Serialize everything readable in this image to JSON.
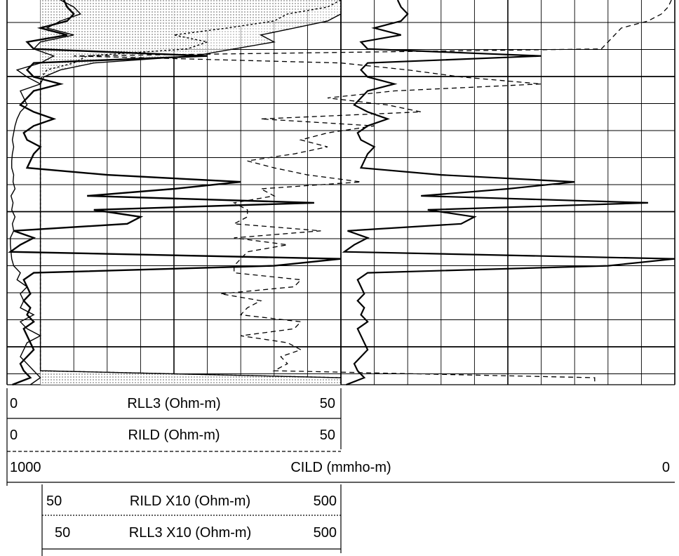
{
  "chart_data": {
    "type": "line",
    "title": "",
    "grid": true,
    "depth_samples": 56,
    "tracks": [
      {
        "name": "track-1",
        "scale": "linear",
        "range": [
          0,
          50
        ],
        "curves": [
          {
            "name": "RLL3",
            "label": "RLL3 (Ohm-m)",
            "unit": "Ohm-m",
            "left_value": "0",
            "right_value": "50",
            "style": "solid",
            "values": [
              8.5,
              9.0,
              10.0,
              9.0,
              5.0,
              9.0,
              3.0,
              4.0,
              30.0,
              4.0,
              3.0,
              4.0,
              8.0,
              4.0,
              3.0,
              2.0,
              4.0,
              7.0,
              4.0,
              2.5,
              3.0,
              5.0,
              4.0,
              3.5,
              3.0,
              15.0,
              35.0,
              25.0,
              12.0,
              46.0,
              13.0,
              20.0,
              18.0,
              1.0,
              4.0,
              2.0,
              0.5,
              50.0,
              40.0,
              4.0,
              2.5,
              3.0,
              3.5,
              2.5,
              3.5,
              3.0,
              4.0,
              2.5,
              3.0,
              3.5,
              4.0,
              3.0,
              2.0,
              2.5,
              3.5,
              0.8
            ]
          },
          {
            "name": "RILD",
            "label": "RILD (Ohm-m)",
            "unit": "Ohm-m",
            "left_value": "0",
            "right_value": "50",
            "style": "solid",
            "values": [
              8.0,
              10.0,
              11.0,
              8.0,
              6.0,
              10.0,
              5.0,
              4.0,
              7.0,
              5.0,
              1.5,
              3.0,
              5.0,
              2.0,
              2.5,
              3.0,
              2.0,
              1.5,
              1.2,
              1.0,
              0.8,
              1.0,
              0.8,
              0.7,
              0.7,
              1.0,
              0.9,
              1.2,
              0.6,
              0.9,
              0.7,
              1.2,
              0.8,
              1.0,
              0.5,
              0.5,
              0.6,
              0.7,
              1.0,
              2.0,
              1.5,
              3.0,
              2.0,
              2.5,
              2.0,
              4.0,
              2.0,
              3.0,
              5.0,
              3.0,
              2.5,
              2.0,
              3.0,
              4.0,
              5.0,
              3.5
            ]
          },
          {
            "name": "RILD X10",
            "label": "RILD X10 (Ohm-m)",
            "unit": "Ohm-m",
            "left_value": "50",
            "right_value": "500",
            "style": "dotted",
            "values": [
              500,
              480,
              420,
              400,
              330,
              250,
              300,
              270,
              120,
              100,
              60,
              52,
              50,
              50,
              50,
              50,
              50,
              50,
              50,
              50,
              50,
              50,
              50,
              50,
              50,
              50,
              50,
              50,
              50,
              50,
              50,
              50,
              50,
              50,
              50,
              50,
              50,
              50,
              50,
              50,
              50,
              50,
              50,
              50,
              50,
              50,
              50,
              50,
              50,
              50,
              50,
              50,
              50,
              50,
              500,
              500
            ]
          },
          {
            "name": "RLL3 X10",
            "label": "RLL3 X10 (Ohm-m)",
            "unit": "Ohm-m",
            "left_value": "50",
            "right_value": "500",
            "style": "solid",
            "values": [
              500,
              500,
              500,
              480,
              430,
              380,
              400,
              340,
              280,
              130,
              80,
              55,
              50,
              50,
              50,
              50,
              50,
              50,
              50,
              50,
              50,
              50,
              50,
              50,
              50,
              50,
              50,
              50,
              50,
              50,
              50,
              50,
              50,
              50,
              50,
              50,
              50,
              50,
              50,
              50,
              50,
              50,
              50,
              50,
              50,
              50,
              50,
              50,
              50,
              50,
              50,
              50,
              50,
              50,
              500,
              500
            ]
          }
        ]
      },
      {
        "name": "track-2",
        "scale": "linear",
        "range": [
          1000,
          0
        ],
        "curves": [
          {
            "name": "CILD",
            "label": "CILD (mmho-m)",
            "unit": "mmho-m",
            "left_value": "1000",
            "right_value": "0",
            "style": "dashed",
            "values": [
              5,
              10,
              20,
              40,
              80,
              90,
              100,
              110,
              900,
              500,
              400,
              320,
              200,
              420,
              520,
              430,
              380,
              620,
              450,
              520,
              560,
              520,
              570,
              640,
              600,
              550,
              470,
              620,
              600,
              660,
              640,
              640,
              660,
              530,
              660,
              580,
              640,
              650,
              660,
              660,
              560,
              570,
              680,
              620,
              640,
              650,
              560,
              570,
              650,
              580,
              560,
              590,
              580,
              600,
              120,
              120
            ]
          }
        ]
      }
    ],
    "header_rows": [
      {
        "left": "0",
        "label": "RLL3 (Ohm-m)",
        "right": "50"
      },
      {
        "left": "0",
        "label": "RILD (Ohm-m)",
        "right": "50"
      },
      {
        "left": "1000",
        "label": "CILD (mmho-m)",
        "right": "0"
      },
      {
        "left": "50",
        "label": "RILD X10 (Ohm-m)",
        "right": "500"
      },
      {
        "left": "50",
        "label": "RLL3 X10 (Ohm-m)",
        "right": "500"
      }
    ]
  }
}
